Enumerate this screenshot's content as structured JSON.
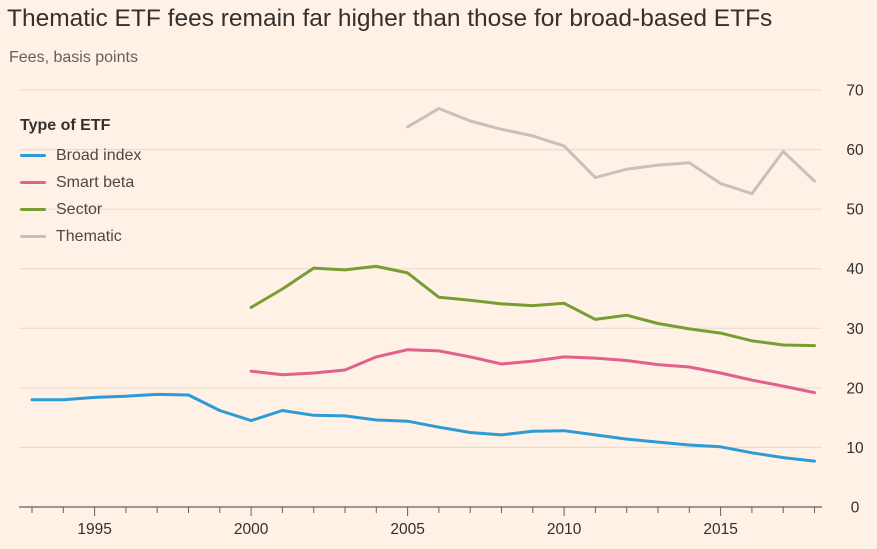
{
  "title": "Thematic ETF fees remain far higher than those for broad-based ETFs",
  "subtitle": "Fees, basis points",
  "legend": {
    "title": "Type of ETF",
    "items": [
      {
        "label": "Broad index",
        "color": "#2e9bd6"
      },
      {
        "label": "Smart beta",
        "color": "#e2618c"
      },
      {
        "label": "Sector",
        "color": "#789d35"
      },
      {
        "label": "Thematic",
        "color": "#c7c1bc"
      }
    ]
  },
  "chart_data": {
    "type": "line",
    "title": "Thematic ETF fees remain far higher than those for broad-based ETFs",
    "ylabel": "Fees, basis points",
    "xlim": [
      1993,
      2018
    ],
    "ylim": [
      0,
      70
    ],
    "yticks": [
      0,
      10,
      20,
      30,
      40,
      50,
      60,
      70
    ],
    "xticks": [
      1995,
      2000,
      2005,
      2010,
      2015
    ],
    "grid": true,
    "legend_position": "top-left",
    "y_axis_side": "right",
    "series": [
      {
        "name": "Broad index",
        "color": "#2e9bd6",
        "x": [
          1993,
          1994,
          1995,
          1996,
          1997,
          1998,
          1999,
          2000,
          2001,
          2002,
          2003,
          2004,
          2005,
          2006,
          2007,
          2008,
          2009,
          2010,
          2011,
          2012,
          2013,
          2014,
          2015,
          2016,
          2017,
          2018
        ],
        "values": [
          18.0,
          18.0,
          18.4,
          18.6,
          18.9,
          18.8,
          16.2,
          14.5,
          16.2,
          15.4,
          15.3,
          14.6,
          14.4,
          13.4,
          12.5,
          12.1,
          12.7,
          12.8,
          12.1,
          11.4,
          10.9,
          10.4,
          10.1,
          9.1,
          8.3,
          7.7
        ]
      },
      {
        "name": "Smart beta",
        "color": "#e2618c",
        "x": [
          2000,
          2001,
          2002,
          2003,
          2004,
          2005,
          2006,
          2007,
          2008,
          2009,
          2010,
          2011,
          2012,
          2013,
          2014,
          2015,
          2016,
          2017,
          2018
        ],
        "values": [
          22.8,
          22.2,
          22.5,
          23.0,
          25.2,
          26.4,
          26.2,
          25.2,
          24.0,
          24.5,
          25.2,
          25.0,
          24.6,
          23.9,
          23.5,
          22.5,
          21.3,
          20.3,
          19.2
        ]
      },
      {
        "name": "Sector",
        "color": "#789d35",
        "x": [
          2000,
          2001,
          2002,
          2003,
          2004,
          2005,
          2006,
          2007,
          2008,
          2009,
          2010,
          2011,
          2012,
          2013,
          2014,
          2015,
          2016,
          2017,
          2018
        ],
        "values": [
          33.5,
          36.6,
          40.1,
          39.8,
          40.4,
          39.3,
          35.2,
          34.7,
          34.1,
          33.8,
          34.2,
          31.5,
          32.2,
          30.8,
          29.9,
          29.2,
          27.9,
          27.2,
          27.1
        ]
      },
      {
        "name": "Thematic",
        "color": "#c7c1bc",
        "x": [
          2005,
          2006,
          2007,
          2008,
          2009,
          2010,
          2011,
          2012,
          2013,
          2014,
          2015,
          2016,
          2017,
          2018
        ],
        "values": [
          63.8,
          66.9,
          64.8,
          63.4,
          62.3,
          60.6,
          55.3,
          56.7,
          57.4,
          57.8,
          54.3,
          52.6,
          59.7,
          54.7
        ]
      }
    ]
  }
}
